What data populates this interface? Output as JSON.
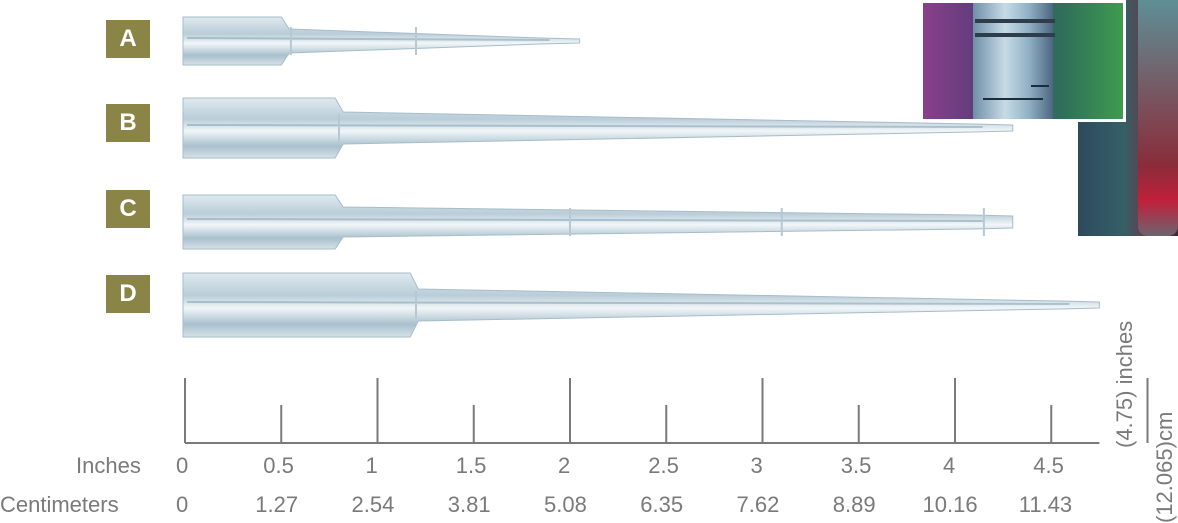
{
  "tips": [
    {
      "label": "A",
      "length_in": 2.05
    },
    {
      "label": "B",
      "length_in": 4.3
    },
    {
      "label": "C",
      "length_in": 4.3
    },
    {
      "label": "D",
      "length_in": 4.75
    }
  ],
  "scale": {
    "inches_title": "Inches",
    "centimeters_title": "Centimeters",
    "inch_ticks": [
      "0",
      "0.5",
      "1",
      "1.5",
      "2",
      "2.5",
      "3",
      "3.5",
      "4",
      "4.5"
    ],
    "cm_ticks": [
      "0",
      "1.27",
      "2.54",
      "3.81",
      "5.08",
      "6.35",
      "7.62",
      "8.89",
      "10.16",
      "11.43"
    ],
    "total_inches_label": "(4.75) inches",
    "total_cm_label": "(12.065)cm"
  },
  "colors": {
    "badge": "#8a8447",
    "label_text": "#7a7a7a",
    "tip_body": "#c9d8e0",
    "tip_shade": "#9fb7c6",
    "tip_light": "#eef4f7"
  },
  "photo_insets": [
    "pipette-tip-closeup-photo",
    "pipette-tip-side-photo"
  ]
}
